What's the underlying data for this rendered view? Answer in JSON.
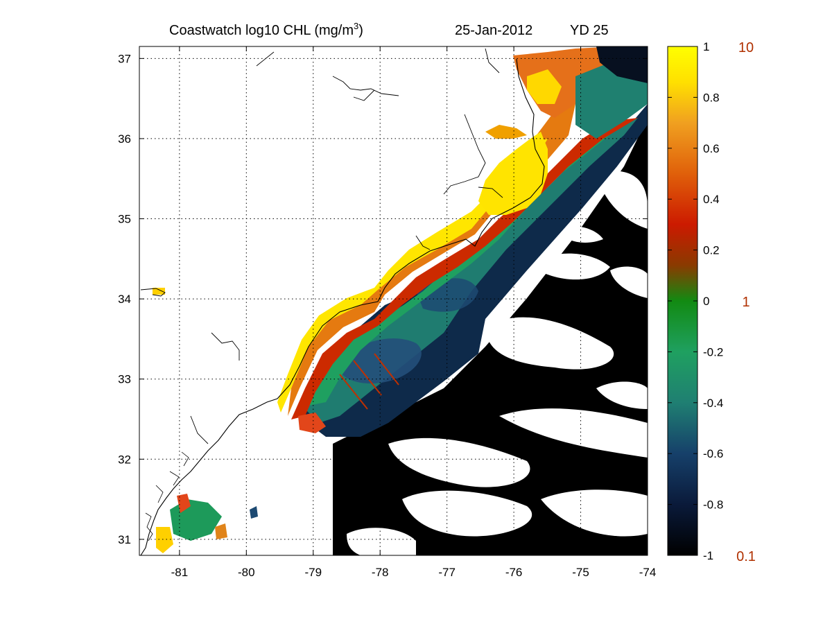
{
  "title": {
    "prefix": "Coastwatch  log10  CHL (mg/m",
    "superscript": "3",
    "suffix": ")",
    "date": "25-Jan-2012",
    "yearday": "YD 25"
  },
  "map": {
    "lon_range": [
      -81.6,
      -74.0
    ],
    "lat_range": [
      30.8,
      37.15
    ],
    "lon_ticks": [
      -81,
      -80,
      -79,
      -78,
      -77,
      -76,
      -75,
      -74
    ],
    "lat_ticks": [
      31,
      32,
      33,
      34,
      35,
      36,
      37
    ],
    "lon_tick_labels": [
      "-81",
      "-80",
      "-79",
      "-78",
      "-77",
      "-76",
      "-75",
      "-74"
    ],
    "lat_tick_labels": [
      "31",
      "32",
      "33",
      "34",
      "35",
      "36",
      "37"
    ],
    "grid": "dotted"
  },
  "colorbar": {
    "range": [
      -1,
      1
    ],
    "tick_labels": [
      "1",
      "0.8",
      "0.6",
      "0.4",
      "0.2",
      "0",
      "-0.2",
      "-0.4",
      "-0.6",
      "-0.8",
      "-1"
    ],
    "linear_labels": [
      "10",
      "1",
      "0.1"
    ],
    "label_color": "#b03000",
    "colors": [
      "#000000",
      "#0a1a3a",
      "#16406a",
      "#1f7f72",
      "#1fa060",
      "#128a12",
      "#8a3a00",
      "#cc1a00",
      "#e0600a",
      "#f0a020",
      "#ffe000",
      "#ffff00"
    ]
  },
  "chart_data": {
    "type": "heatmap",
    "title": "Coastwatch  log10  CHL (mg/m3)  25-Jan-2012  YD 25",
    "x_range": [
      -81.6,
      -74.0
    ],
    "y_range": [
      30.8,
      37.15
    ],
    "color_scale_range": [
      -1,
      1
    ],
    "x_ticks": [
      -81,
      -80,
      -79,
      -78,
      -77,
      -76,
      -75,
      -74
    ],
    "y_ticks": [
      31,
      32,
      33,
      34,
      35,
      36,
      37
    ],
    "grid": true
  }
}
